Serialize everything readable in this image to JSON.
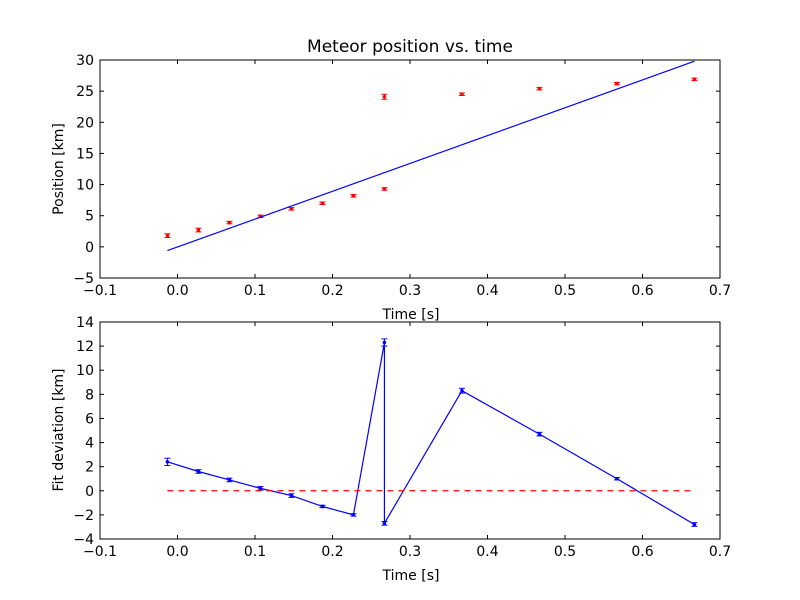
{
  "chart_data": [
    {
      "type": "scatter",
      "title": "Meteor position vs. time",
      "xlabel": "Time [s]",
      "ylabel": "Position [km]",
      "xlim": [
        -0.1,
        0.7
      ],
      "ylim": [
        -5,
        30
      ],
      "xticks": [
        -0.1,
        0.0,
        0.1,
        0.2,
        0.3,
        0.4,
        0.5,
        0.6,
        0.7
      ],
      "xtick_labels": [
        "−0.1",
        "0.0",
        "0.1",
        "0.2",
        "0.3",
        "0.4",
        "0.5",
        "0.6",
        "0.7"
      ],
      "yticks": [
        -5,
        0,
        5,
        10,
        15,
        20,
        25,
        30
      ],
      "ytick_labels": [
        "−5",
        "0",
        "5",
        "10",
        "15",
        "20",
        "25",
        "30"
      ],
      "grid": false,
      "legend": "none",
      "series": [
        {
          "kind": "errorbar-points",
          "color": "#ff0000",
          "x": [
            -0.013,
            0.027,
            0.067,
            0.107,
            0.147,
            0.187,
            0.227,
            0.267,
            0.267,
            0.367,
            0.467,
            0.567,
            0.667
          ],
          "y": [
            1.8,
            2.7,
            3.9,
            4.9,
            6.1,
            7.0,
            8.2,
            9.3,
            24.1,
            24.5,
            25.4,
            26.2,
            26.9
          ],
          "yerr": [
            0.3,
            0.3,
            0.2,
            0.2,
            0.2,
            0.2,
            0.2,
            0.2,
            0.4,
            0.2,
            0.2,
            0.2,
            0.2
          ]
        },
        {
          "kind": "fit-line",
          "color": "#0000ff",
          "x": [
            -0.013,
            0.667
          ],
          "y": [
            -0.6,
            29.8
          ]
        }
      ]
    },
    {
      "type": "line",
      "title": "",
      "xlabel": "Time [s]",
      "ylabel": "Fit deviation [km]",
      "xlim": [
        -0.1,
        0.7
      ],
      "ylim": [
        -4,
        14
      ],
      "xticks": [
        -0.1,
        0.0,
        0.1,
        0.2,
        0.3,
        0.4,
        0.5,
        0.6,
        0.7
      ],
      "xtick_labels": [
        "−0.1",
        "0.0",
        "0.1",
        "0.2",
        "0.3",
        "0.4",
        "0.5",
        "0.6",
        "0.7"
      ],
      "yticks": [
        -4,
        -2,
        0,
        2,
        4,
        6,
        8,
        10,
        12,
        14
      ],
      "ytick_labels": [
        "−4",
        "−2",
        "0",
        "2",
        "4",
        "6",
        "8",
        "10",
        "12",
        "14"
      ],
      "grid": false,
      "legend": "none",
      "series": [
        {
          "kind": "errorbar-line",
          "color": "#0000ff",
          "x": [
            -0.013,
            0.027,
            0.067,
            0.107,
            0.147,
            0.187,
            0.227,
            0.267,
            0.267,
            0.367,
            0.467,
            0.567,
            0.667
          ],
          "y": [
            2.4,
            1.6,
            0.9,
            0.2,
            -0.4,
            -1.3,
            -2.0,
            12.3,
            -2.7,
            8.3,
            4.7,
            1.0,
            -2.8
          ],
          "yerr": [
            0.3,
            0.15,
            0.15,
            0.15,
            0.15,
            0.1,
            0.1,
            0.3,
            0.15,
            0.2,
            0.15,
            0.1,
            0.15
          ]
        },
        {
          "kind": "reference-line",
          "color": "#ff0000",
          "style": "dashed",
          "x": [
            -0.013,
            0.667
          ],
          "y": [
            0,
            0
          ]
        }
      ]
    }
  ]
}
